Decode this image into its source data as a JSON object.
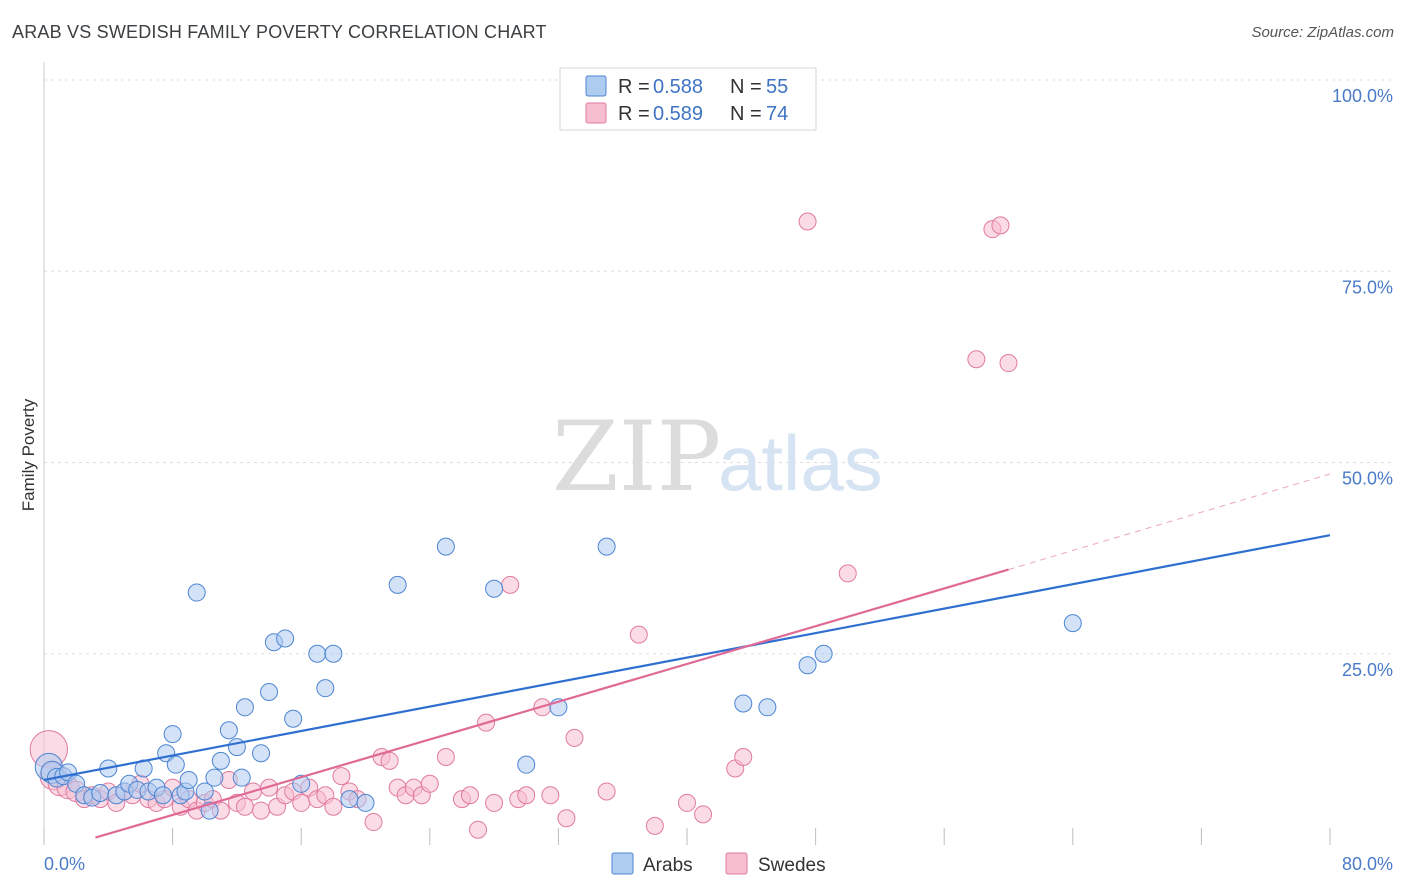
{
  "header": {
    "title": "ARAB VS SWEDISH FAMILY POVERTY CORRELATION CHART",
    "source": "Source: ZipAtlas.com"
  },
  "watermark": {
    "part1": "ZIP",
    "part2": "atlas"
  },
  "colors": {
    "arab_fill": "#aecbf0",
    "arab_stroke": "#4d86d3",
    "arab_line": "#2f6fd0",
    "swede_fill": "#f7bed0",
    "swede_stroke": "#e07ba0",
    "swede_line": "#e06a96",
    "grid": "#dddddd",
    "tick_text": "#4a7bc8"
  },
  "legend": {
    "rows": [
      {
        "r_label": "R =",
        "r_value": "0.588",
        "n_label": "N =",
        "n_value": "55",
        "series": "arab"
      },
      {
        "r_label": "R =",
        "r_value": "0.589",
        "n_label": "N =",
        "n_value": "74",
        "series": "swede"
      }
    ]
  },
  "chart_data": {
    "type": "scatter",
    "title": "ARAB VS SWEDISH FAMILY POVERTY CORRELATION CHART",
    "xlabel": "",
    "ylabel": "Family Poverty",
    "xlim": [
      0,
      80
    ],
    "ylim": [
      0,
      105
    ],
    "x_tick_labels": [
      "0.0%",
      "80.0%"
    ],
    "y_ticks": [
      25,
      50,
      75,
      100
    ],
    "y_tick_labels": [
      "25.0%",
      "50.0%",
      "75.0%",
      "100.0%"
    ],
    "grid": true,
    "legend_position": "bottom-center",
    "series": [
      {
        "name": "Arabs",
        "color": "#4d86d3",
        "r": 0.588,
        "n": 55,
        "trend": {
          "x0": 0,
          "y0": 8.5,
          "x1": 80,
          "y1": 40.5
        },
        "points": [
          [
            0.3,
            10.2,
            1.6
          ],
          [
            0.5,
            9.5,
            1.3
          ],
          [
            0.8,
            8.8,
            1.1
          ],
          [
            1.2,
            9.0,
            1
          ],
          [
            1.5,
            9.5,
            1
          ],
          [
            2.0,
            8.0,
            1
          ],
          [
            2.5,
            6.5,
            1
          ],
          [
            3.0,
            6.2,
            1
          ],
          [
            3.5,
            6.8,
            1
          ],
          [
            4.0,
            10.0,
            1
          ],
          [
            4.5,
            6.5,
            1
          ],
          [
            5.0,
            7.0,
            1
          ],
          [
            5.3,
            8.0,
            1
          ],
          [
            5.8,
            7.2,
            1
          ],
          [
            6.2,
            10.0,
            1
          ],
          [
            6.5,
            7.0,
            1
          ],
          [
            7.0,
            7.5,
            1
          ],
          [
            7.4,
            6.5,
            1
          ],
          [
            7.6,
            12.0,
            1
          ],
          [
            8.0,
            14.5,
            1
          ],
          [
            8.2,
            10.5,
            1
          ],
          [
            8.5,
            6.5,
            1
          ],
          [
            8.8,
            7.0,
            1
          ],
          [
            9.0,
            8.5,
            1
          ],
          [
            9.5,
            33.0,
            1
          ],
          [
            10.0,
            7.0,
            1
          ],
          [
            10.3,
            4.5,
            1
          ],
          [
            10.6,
            8.8,
            1
          ],
          [
            11.0,
            11.0,
            1
          ],
          [
            11.5,
            15.0,
            1
          ],
          [
            12.0,
            12.8,
            1
          ],
          [
            12.3,
            8.8,
            1
          ],
          [
            12.5,
            18.0,
            1
          ],
          [
            13.5,
            12.0,
            1
          ],
          [
            14.0,
            20.0,
            1
          ],
          [
            14.3,
            26.5,
            1
          ],
          [
            15.0,
            27.0,
            1
          ],
          [
            15.5,
            16.5,
            1
          ],
          [
            16.0,
            8.0,
            1
          ],
          [
            17.0,
            25.0,
            1
          ],
          [
            17.5,
            20.5,
            1
          ],
          [
            18.0,
            25.0,
            1
          ],
          [
            19.0,
            6.0,
            1
          ],
          [
            20.0,
            5.5,
            1
          ],
          [
            22.0,
            34.0,
            1
          ],
          [
            25.0,
            39.0,
            1
          ],
          [
            28.0,
            33.5,
            1
          ],
          [
            30.0,
            10.5,
            1
          ],
          [
            32.0,
            18.0,
            1
          ],
          [
            35.0,
            39.0,
            1
          ],
          [
            43.5,
            18.5,
            1
          ],
          [
            45.0,
            18.0,
            1
          ],
          [
            47.5,
            23.5,
            1
          ],
          [
            48.5,
            25.0,
            1
          ],
          [
            64.0,
            29.0,
            1
          ]
        ]
      },
      {
        "name": "Swedes",
        "color": "#e07ba0",
        "r": 0.589,
        "n": 74,
        "trend": {
          "x0": 0,
          "y0": -1.0,
          "x1": 60,
          "y1": 36.0,
          "dashed_to_x": 80,
          "dashed_to_y": 48.5
        },
        "points": [
          [
            0.3,
            12.5,
            2.2
          ],
          [
            0.6,
            9.0,
            1.6
          ],
          [
            1.0,
            8.0,
            1.4
          ],
          [
            1.5,
            7.5,
            1.3
          ],
          [
            2.0,
            7.0,
            1.2
          ],
          [
            2.5,
            6.0,
            1
          ],
          [
            3.0,
            6.5,
            1
          ],
          [
            3.5,
            6.0,
            1
          ],
          [
            4.0,
            7.0,
            1
          ],
          [
            4.5,
            5.5,
            1
          ],
          [
            5.0,
            7.0,
            1
          ],
          [
            5.5,
            6.5,
            1
          ],
          [
            6.0,
            8.0,
            1
          ],
          [
            6.5,
            6.0,
            1
          ],
          [
            7.0,
            5.5,
            1
          ],
          [
            7.5,
            6.0,
            1
          ],
          [
            8.0,
            7.5,
            1
          ],
          [
            8.5,
            5.0,
            1
          ],
          [
            9.0,
            6.0,
            1
          ],
          [
            9.5,
            4.5,
            1
          ],
          [
            10.0,
            5.5,
            1
          ],
          [
            10.5,
            6.0,
            1
          ],
          [
            11.0,
            4.5,
            1
          ],
          [
            11.5,
            8.5,
            1
          ],
          [
            12.0,
            5.5,
            1
          ],
          [
            12.5,
            5.0,
            1
          ],
          [
            13.0,
            7.0,
            1
          ],
          [
            13.5,
            4.5,
            1
          ],
          [
            14.0,
            7.5,
            1
          ],
          [
            14.5,
            5.0,
            1
          ],
          [
            15.0,
            6.5,
            1
          ],
          [
            15.5,
            7.0,
            1
          ],
          [
            16.0,
            5.5,
            1
          ],
          [
            16.5,
            7.5,
            1
          ],
          [
            17.0,
            6.0,
            1
          ],
          [
            17.5,
            6.5,
            1
          ],
          [
            18.0,
            5.0,
            1
          ],
          [
            18.5,
            9.0,
            1
          ],
          [
            19.0,
            7.0,
            1
          ],
          [
            19.5,
            6.0,
            1
          ],
          [
            20.5,
            3.0,
            1
          ],
          [
            21.0,
            11.5,
            1
          ],
          [
            21.5,
            11.0,
            1
          ],
          [
            22.0,
            7.5,
            1
          ],
          [
            22.5,
            6.5,
            1
          ],
          [
            23.0,
            7.5,
            1
          ],
          [
            23.5,
            6.5,
            1
          ],
          [
            24.0,
            8.0,
            1
          ],
          [
            25.0,
            11.5,
            1
          ],
          [
            26.0,
            6.0,
            1
          ],
          [
            26.5,
            6.5,
            1
          ],
          [
            27.0,
            2.0,
            1
          ],
          [
            27.5,
            16.0,
            1
          ],
          [
            28.0,
            5.5,
            1
          ],
          [
            29.0,
            34.0,
            1
          ],
          [
            29.5,
            6.0,
            1
          ],
          [
            30.0,
            6.5,
            1
          ],
          [
            31.0,
            18.0,
            1
          ],
          [
            31.5,
            6.5,
            1
          ],
          [
            32.5,
            3.5,
            1
          ],
          [
            33.0,
            14.0,
            1
          ],
          [
            35.0,
            7.0,
            1
          ],
          [
            37.0,
            27.5,
            1
          ],
          [
            38.0,
            2.5,
            1
          ],
          [
            40.0,
            5.5,
            1
          ],
          [
            41.0,
            4.0,
            1
          ],
          [
            43.0,
            10.0,
            1
          ],
          [
            43.5,
            11.5,
            1
          ],
          [
            47.5,
            81.5,
            1
          ],
          [
            50.0,
            35.5,
            1
          ],
          [
            58.0,
            63.5,
            1
          ],
          [
            59.0,
            80.5,
            1
          ],
          [
            59.5,
            81.0,
            1
          ],
          [
            60.0,
            63.0,
            1
          ]
        ]
      }
    ]
  }
}
